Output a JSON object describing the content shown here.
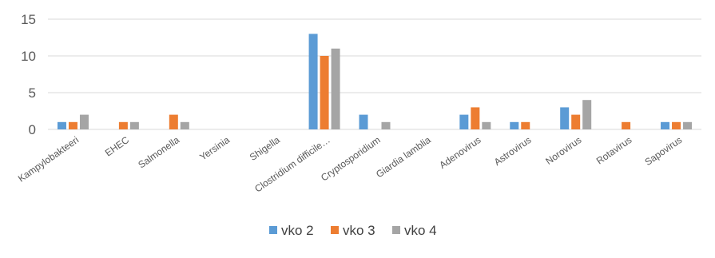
{
  "chart_data": {
    "type": "bar",
    "categories": [
      "Kampylobakteeri",
      "EHEC",
      "Salmonella",
      "Yersinia",
      "Shigella",
      "Clostridium difficile…",
      "Cryptosporidium",
      "Giardia lamblia",
      "Adenovirus",
      "Astrovirus",
      "Norovirus",
      "Rotavirus",
      "Sapovirus"
    ],
    "series": [
      {
        "name": "vko 2",
        "color": "#5B9BD5",
        "values": [
          1,
          0,
          0,
          0,
          0,
          13,
          2,
          0,
          2,
          1,
          3,
          0,
          1
        ]
      },
      {
        "name": "vko 3",
        "color": "#ED7D31",
        "values": [
          1,
          1,
          2,
          0,
          0,
          10,
          0,
          0,
          3,
          1,
          2,
          1,
          1
        ]
      },
      {
        "name": "vko 4",
        "color": "#A5A5A5",
        "values": [
          2,
          1,
          1,
          0,
          0,
          11,
          1,
          0,
          1,
          0,
          4,
          0,
          1
        ]
      }
    ],
    "yticks": [
      0,
      5,
      10,
      15
    ],
    "ylim": [
      0,
      15
    ],
    "grid": true,
    "gridColor": "#D9D9D9",
    "legend_position": "bottom"
  }
}
